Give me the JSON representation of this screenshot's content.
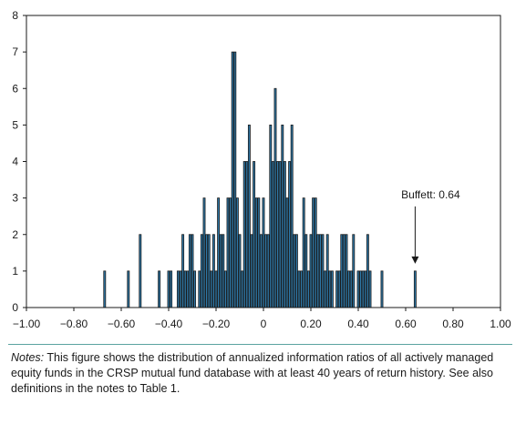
{
  "chart_data": {
    "type": "bar",
    "title": "",
    "xlabel": "",
    "ylabel": "",
    "xlim": [
      -1.0,
      1.0
    ],
    "ylim": [
      0,
      8
    ],
    "bin_width": 0.01,
    "x_ticks": [
      "−1.00",
      "−0.80",
      "−0.60",
      "−0.40",
      "−0.20",
      "0",
      "0.20",
      "0.40",
      "0.60",
      "0.80",
      "1.00"
    ],
    "y_ticks": [
      "0",
      "1",
      "2",
      "3",
      "4",
      "5",
      "6",
      "7",
      "8"
    ],
    "bar_color": "#2e78a8",
    "bar_edge_color": "#1a1a1a",
    "bins": [
      {
        "x": -0.67,
        "count": 1
      },
      {
        "x": -0.57,
        "count": 1
      },
      {
        "x": -0.52,
        "count": 2
      },
      {
        "x": -0.44,
        "count": 1
      },
      {
        "x": -0.4,
        "count": 1
      },
      {
        "x": -0.39,
        "count": 1
      },
      {
        "x": -0.36,
        "count": 1
      },
      {
        "x": -0.35,
        "count": 1
      },
      {
        "x": -0.34,
        "count": 2
      },
      {
        "x": -0.33,
        "count": 1
      },
      {
        "x": -0.32,
        "count": 1
      },
      {
        "x": -0.31,
        "count": 2
      },
      {
        "x": -0.3,
        "count": 2
      },
      {
        "x": -0.29,
        "count": 1
      },
      {
        "x": -0.27,
        "count": 1
      },
      {
        "x": -0.26,
        "count": 2
      },
      {
        "x": -0.25,
        "count": 3
      },
      {
        "x": -0.24,
        "count": 2
      },
      {
        "x": -0.23,
        "count": 2
      },
      {
        "x": -0.22,
        "count": 1
      },
      {
        "x": -0.21,
        "count": 2
      },
      {
        "x": -0.2,
        "count": 1
      },
      {
        "x": -0.19,
        "count": 3
      },
      {
        "x": -0.18,
        "count": 2
      },
      {
        "x": -0.17,
        "count": 2
      },
      {
        "x": -0.16,
        "count": 1
      },
      {
        "x": -0.15,
        "count": 3
      },
      {
        "x": -0.14,
        "count": 3
      },
      {
        "x": -0.13,
        "count": 7
      },
      {
        "x": -0.12,
        "count": 7
      },
      {
        "x": -0.11,
        "count": 3
      },
      {
        "x": -0.1,
        "count": 2
      },
      {
        "x": -0.09,
        "count": 1
      },
      {
        "x": -0.08,
        "count": 4
      },
      {
        "x": -0.07,
        "count": 4
      },
      {
        "x": -0.06,
        "count": 5
      },
      {
        "x": -0.05,
        "count": 2
      },
      {
        "x": -0.04,
        "count": 4
      },
      {
        "x": -0.03,
        "count": 3
      },
      {
        "x": -0.02,
        "count": 3
      },
      {
        "x": -0.01,
        "count": 2
      },
      {
        "x": 0.0,
        "count": 3
      },
      {
        "x": 0.01,
        "count": 2
      },
      {
        "x": 0.02,
        "count": 2
      },
      {
        "x": 0.03,
        "count": 5
      },
      {
        "x": 0.04,
        "count": 4
      },
      {
        "x": 0.05,
        "count": 6
      },
      {
        "x": 0.06,
        "count": 4
      },
      {
        "x": 0.07,
        "count": 4
      },
      {
        "x": 0.08,
        "count": 5
      },
      {
        "x": 0.09,
        "count": 4
      },
      {
        "x": 0.1,
        "count": 3
      },
      {
        "x": 0.11,
        "count": 4
      },
      {
        "x": 0.12,
        "count": 5
      },
      {
        "x": 0.13,
        "count": 2
      },
      {
        "x": 0.14,
        "count": 2
      },
      {
        "x": 0.15,
        "count": 1
      },
      {
        "x": 0.16,
        "count": 1
      },
      {
        "x": 0.17,
        "count": 3
      },
      {
        "x": 0.18,
        "count": 2
      },
      {
        "x": 0.19,
        "count": 1
      },
      {
        "x": 0.2,
        "count": 2
      },
      {
        "x": 0.21,
        "count": 3
      },
      {
        "x": 0.22,
        "count": 3
      },
      {
        "x": 0.23,
        "count": 2
      },
      {
        "x": 0.24,
        "count": 2
      },
      {
        "x": 0.25,
        "count": 2
      },
      {
        "x": 0.26,
        "count": 1
      },
      {
        "x": 0.27,
        "count": 2
      },
      {
        "x": 0.28,
        "count": 1
      },
      {
        "x": 0.29,
        "count": 1
      },
      {
        "x": 0.31,
        "count": 1
      },
      {
        "x": 0.32,
        "count": 1
      },
      {
        "x": 0.33,
        "count": 2
      },
      {
        "x": 0.34,
        "count": 2
      },
      {
        "x": 0.35,
        "count": 2
      },
      {
        "x": 0.36,
        "count": 1
      },
      {
        "x": 0.37,
        "count": 1
      },
      {
        "x": 0.38,
        "count": 2
      },
      {
        "x": 0.4,
        "count": 1
      },
      {
        "x": 0.41,
        "count": 1
      },
      {
        "x": 0.42,
        "count": 1
      },
      {
        "x": 0.43,
        "count": 1
      },
      {
        "x": 0.44,
        "count": 2
      },
      {
        "x": 0.45,
        "count": 1
      },
      {
        "x": 0.5,
        "count": 1
      },
      {
        "x": 0.64,
        "count": 1
      }
    ],
    "annotation": {
      "text": "Buffett: 0.64",
      "x": 0.64,
      "count": 1
    }
  },
  "notes": {
    "label": "Notes:",
    "text": " This figure shows the distribution of annualized information ratios of all actively managed equity funds in the CRSP mutual fund database with at least 40 years of return history. See also definitions in the notes to Table 1."
  }
}
